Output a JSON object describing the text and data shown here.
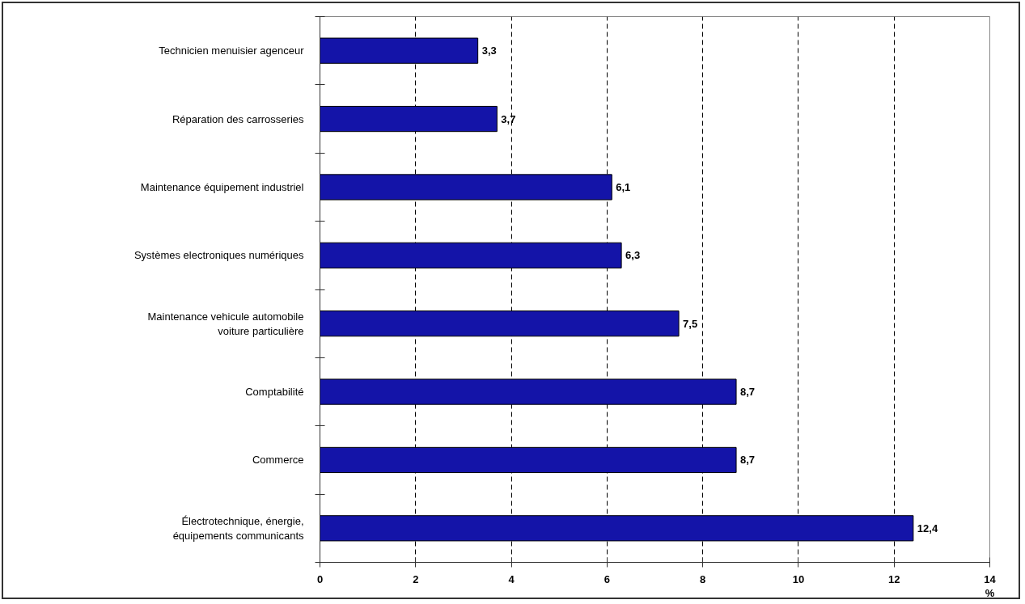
{
  "chart_data": {
    "type": "bar",
    "orientation": "horizontal",
    "categories": [
      "Technicien menuisier agenceur",
      "Réparation des carrosseries",
      "Maintenance équipement industriel",
      "Systèmes electroniques numériques",
      "Maintenance vehicule automobile\nvoiture particulière",
      "Comptabilité",
      "Commerce",
      "Électrotechnique, énergie,\néquipements communicants"
    ],
    "values": [
      3.3,
      3.7,
      6.1,
      6.3,
      7.5,
      8.7,
      8.7,
      12.4
    ],
    "value_labels": [
      "3,3",
      "3,7",
      "6,1",
      "6,3",
      "7,5",
      "8,7",
      "8,7",
      "12,4"
    ],
    "color": "#1414a8",
    "xlim": [
      0,
      14
    ],
    "xticks": [
      0,
      2,
      4,
      6,
      8,
      10,
      12,
      14
    ],
    "xlabel": "%",
    "grid": "x"
  }
}
